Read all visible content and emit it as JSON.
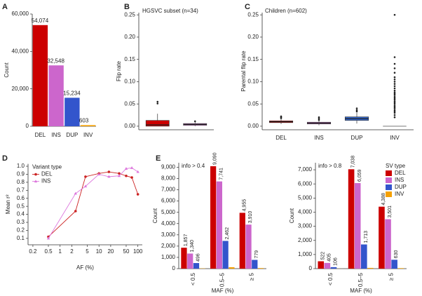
{
  "chart_data": [
    {
      "type": "bar",
      "panel": "A",
      "ylabel": "Count",
      "categories": [
        "DEL",
        "INS",
        "DUP",
        "INV"
      ],
      "values": [
        54074,
        32548,
        15234,
        603
      ],
      "value_labels": [
        "54,074",
        "32,548",
        "15,234",
        "603"
      ],
      "colors": [
        "#cc0000",
        "#cc66cc",
        "#3355cc",
        "#f5a000"
      ],
      "ylim": [
        0,
        60000
      ],
      "yticks": [
        0,
        {
          "value": 20000,
          "label": "20,000"
        },
        {
          "value": 40000,
          "label": "40,000"
        },
        {
          "value": 60000,
          "label": "60,000"
        }
      ]
    },
    {
      "type": "box",
      "panel": "B",
      "title": "HGSVC subset (n=34)",
      "ylabel": "Flip rate",
      "categories": [
        null,
        null
      ],
      "colors": [
        "#cc0000",
        "#cc66cc"
      ],
      "boxes": [
        {
          "whislo": 0,
          "q1": 0,
          "med": 0.003,
          "q3": 0.013,
          "whishi": 0.028,
          "fliers": [
            0.051,
            0.055
          ]
        },
        {
          "whislo": 0,
          "q1": 0.002,
          "med": 0.004,
          "q3": 0.006,
          "whishi": 0.009,
          "fliers": [
            0.011
          ]
        }
      ],
      "ylim": [
        -0.008,
        0.255
      ],
      "yticks": [
        {
          "value": 0,
          "label": "0.00"
        },
        0.05,
        {
          "value": 0.1,
          "label": "0.10"
        },
        0.15,
        {
          "value": 0.2,
          "label": "0.20"
        },
        0.25
      ]
    },
    {
      "type": "box",
      "panel": "C",
      "title": "Children (n=602)",
      "ylabel": "Parental flip rate",
      "categories": [
        "DEL",
        "INS",
        "DUP",
        "INV"
      ],
      "colors": [
        "#cc0000",
        "#cc66cc",
        "#3366cc",
        "#999999"
      ],
      "boxes": [
        {
          "whislo": 0.005,
          "q1": 0.008,
          "med": 0.01,
          "q3": 0.012,
          "whishi": 0.016,
          "fliers": [
            0.018,
            0.02,
            0.022
          ]
        },
        {
          "whislo": 0.002,
          "q1": 0.005,
          "med": 0.007,
          "q3": 0.009,
          "whishi": 0.012,
          "fliers": [
            0.014,
            0.017,
            0.02
          ]
        },
        {
          "whislo": 0.006,
          "q1": 0.013,
          "med": 0.017,
          "q3": 0.021,
          "whishi": 0.03,
          "fliers": [
            0.033,
            0.036,
            0.04
          ]
        },
        {
          "whislo": 0,
          "q1": 0,
          "med": 0,
          "q3": 0,
          "whishi": 0,
          "fliers": [
            0.02,
            0.025,
            0.03,
            0.033,
            0.036,
            0.04,
            0.043,
            0.046,
            0.05,
            0.053,
            0.056,
            0.06,
            0.063,
            0.066,
            0.07,
            0.073,
            0.076,
            0.08,
            0.085,
            0.09,
            0.095,
            0.1,
            0.105,
            0.11,
            0.12,
            0.13,
            0.14,
            0.155,
            0.25
          ]
        }
      ],
      "ylim": [
        -0.008,
        0.255
      ],
      "yticks": [
        {
          "value": 0,
          "label": "0.00"
        },
        0.05,
        {
          "value": 0.1,
          "label": "0.10"
        },
        0.15,
        {
          "value": 0.2,
          "label": "0.20"
        },
        0.25
      ]
    },
    {
      "type": "line",
      "panel": "D",
      "xlabel": "AF (%)",
      "ylabel": "Mean r²",
      "xscale": "log",
      "legend": "upper left",
      "legend_title": "Variant type",
      "x": [
        0.5,
        2.5,
        4.5,
        10,
        18,
        33,
        50,
        70,
        100
      ],
      "series": [
        {
          "name": "DEL",
          "color": "#cc2222",
          "marker": "circle",
          "values": [
            0.12,
            0.44,
            0.87,
            0.91,
            0.93,
            0.91,
            0.88,
            0.86,
            0.65
          ]
        },
        {
          "name": "INS",
          "color": "#dd77dd",
          "marker": "triangle",
          "values": [
            0.1,
            0.66,
            0.75,
            0.9,
            0.87,
            0.88,
            0.97,
            0.98,
            0.93
          ]
        }
      ],
      "xlim": [
        0.15,
        130
      ],
      "xticks": [
        0.2,
        0.5,
        1,
        2,
        5,
        10,
        20,
        50,
        100
      ],
      "ylim": [
        0.02,
        1.03
      ],
      "yticks": [
        0.1,
        0.2,
        0.3,
        0.4,
        0.5,
        0.6,
        0.7,
        0.8,
        0.9,
        {
          "value": 1,
          "label": "1.0"
        }
      ]
    },
    {
      "type": "bar",
      "panel": "E",
      "title": "info > 0.4",
      "xlabel": "MAF (%)",
      "ylabel": "Count",
      "categories": [
        "< 0.5",
        "0.5–5",
        "≥ 5"
      ],
      "series": [
        {
          "color": "#cc0000",
          "values": [
            1857,
            9090,
            4955
          ],
          "value_labels": [
            "1,857",
            "9,090",
            "4,955"
          ]
        },
        {
          "color": "#cc66cc",
          "values": [
            1340,
            7741,
            3910
          ],
          "value_labels": [
            "1,340",
            "7,741",
            "3,910"
          ]
        },
        {
          "color": "#3355cc",
          "values": [
            496,
            2462,
            779
          ],
          "value_labels": [
            "496",
            "2,462",
            "779"
          ]
        },
        {
          "color": "#f5a000",
          "values": [
            23,
            124,
            50
          ]
        }
      ],
      "ylim": [
        0,
        9400
      ],
      "yticks": [
        0,
        {
          "value": 1000,
          "label": "1,000"
        },
        {
          "value": 2000,
          "label": "2,000"
        },
        {
          "value": 3000,
          "label": "3,000"
        },
        {
          "value": 4000,
          "label": "4,000"
        },
        {
          "value": 5000,
          "label": "5,000"
        },
        {
          "value": 6000,
          "label": "6,000"
        },
        {
          "value": 7000,
          "label": "7,000"
        },
        {
          "value": 8000,
          "label": "8,000"
        },
        {
          "value": 9000,
          "label": "9,000"
        }
      ]
    },
    {
      "type": "bar",
      "title": "info > 0.8",
      "xlabel": "MAF (%)",
      "ylabel": "Count",
      "legend": "upper right",
      "legend_title": "SV type",
      "categories": [
        "< 0.5",
        "0.5–5",
        "≥ 5"
      ],
      "series": [
        {
          "name": "DEL",
          "color": "#cc0000",
          "values": [
            522,
            7038,
            4388
          ],
          "value_labels": [
            "522",
            "7,038",
            "4,388"
          ]
        },
        {
          "name": "INS",
          "color": "#cc66cc",
          "values": [
            405,
            6059,
            3501
          ],
          "value_labels": [
            "405",
            "6,059",
            "3,501"
          ]
        },
        {
          "name": "DUP",
          "color": "#3355cc",
          "values": [
            106,
            1713,
            630
          ],
          "value_labels": [
            "106",
            "1,713",
            "630"
          ]
        },
        {
          "name": "INV",
          "color": "#f5a000",
          "values": [
            4,
            53,
            35
          ]
        }
      ],
      "ylim": [
        0,
        7500
      ],
      "yticks": [
        0,
        {
          "value": 1000,
          "label": "1,000"
        },
        {
          "value": 2000,
          "label": "2,000"
        },
        {
          "value": 3000,
          "label": "3,000"
        },
        {
          "value": 4000,
          "label": "4,000"
        },
        {
          "value": 5000,
          "label": "5,000"
        },
        {
          "value": 6000,
          "label": "6,000"
        },
        {
          "value": 7000,
          "label": "7,000"
        }
      ]
    }
  ]
}
